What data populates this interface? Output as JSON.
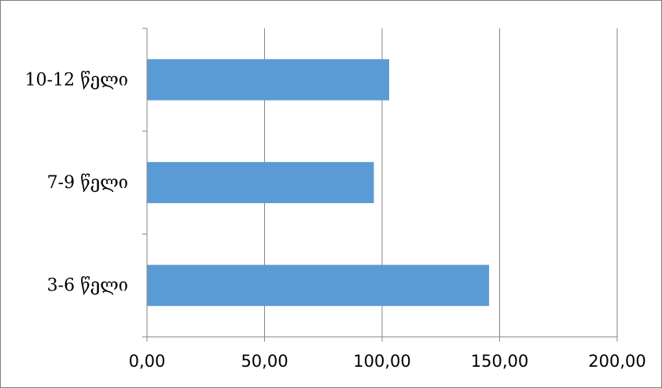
{
  "chart_data": {
    "type": "bar",
    "orientation": "horizontal",
    "title": "",
    "xlabel": "",
    "ylabel": "",
    "categories": [
      "3-6 წელი",
      "7-9 წელი",
      "10-12 წელი"
    ],
    "values": [
      145.5,
      96.5,
      103.0
    ],
    "xlim": [
      0,
      200
    ],
    "x_ticks": [
      0,
      50,
      100,
      150,
      200
    ],
    "x_tick_labels": [
      "0,00",
      "50,00",
      "100,00",
      "150,00",
      "200,00"
    ],
    "grid": "vertical",
    "legend": "none",
    "bar_color": "#5b9bd5",
    "grid_color": "#868686"
  }
}
